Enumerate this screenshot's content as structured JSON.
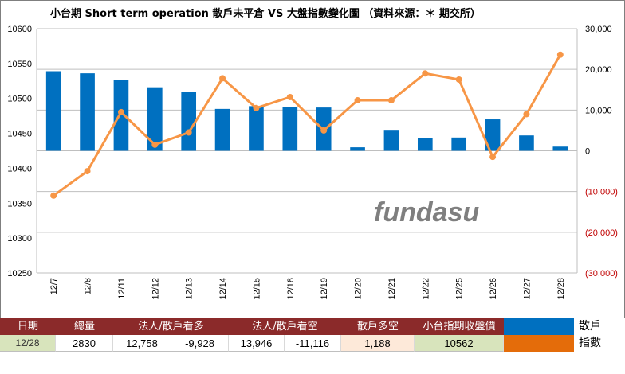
{
  "chart_data": {
    "type": "bar+line",
    "title": "小台期 Short term operation  散戶未平倉 VS 大盤指數變化圖  （資料來源：＊ 期交所）",
    "watermark": "fundasu",
    "categories": [
      "12/7",
      "12/8",
      "12/11",
      "12/12",
      "12/13",
      "12/14",
      "12/15",
      "12/18",
      "12/19",
      "12/20",
      "12/21",
      "12/22",
      "12/25",
      "12/26",
      "12/27",
      "12/28"
    ],
    "left_axis": {
      "ylim": [
        10250,
        10600
      ],
      "ticks": [
        "10600",
        "10550",
        "10500",
        "10450",
        "10400",
        "10350",
        "10300",
        "10250"
      ],
      "tick_values": [
        10600,
        10550,
        10500,
        10450,
        10400,
        10350,
        10300,
        10250
      ]
    },
    "right_axis": {
      "ylim": [
        -30000,
        30000
      ],
      "ticks": [
        "30,000",
        "20,000",
        "10,000",
        "0",
        "(10,000)",
        "(20,000)",
        "(30,000)"
      ],
      "tick_values": [
        30000,
        20000,
        10000,
        0,
        -10000,
        -20000,
        -30000
      ]
    },
    "series": [
      {
        "kind": "bar",
        "axis": "left",
        "color": "#0070c0",
        "values": [
          10539,
          10536,
          10527,
          10516,
          10509,
          10485,
          10489,
          10488,
          10487,
          10430,
          10455,
          10443,
          10444,
          10470,
          10447,
          10431
        ]
      },
      {
        "kind": "line",
        "axis": "right",
        "color": "#f79646",
        "values": [
          -11000,
          -5000,
          9500,
          1500,
          4500,
          17800,
          10500,
          13200,
          5000,
          12400,
          12400,
          19000,
          17500,
          -1500,
          9000,
          23600
        ]
      }
    ],
    "grid": "horizontal"
  },
  "table": {
    "headers": {
      "date": "日期",
      "volume": "總量",
      "inst_long": "法人/散戶看多",
      "inst_short": "法人/散戶看空",
      "retail": "散戶多空",
      "close": "小台指期收盤價"
    },
    "values": {
      "date": "12/28",
      "volume": "2830",
      "inst_long_1": "12,758",
      "inst_long_2": "-9,928",
      "inst_short_1": "13,946",
      "inst_short_2": "-11,116",
      "retail": "1,188",
      "close": "10562"
    },
    "legend": [
      {
        "label": "散戶",
        "color": "#0070c0"
      },
      {
        "label": "指數",
        "color": "#e46c0a"
      }
    ]
  }
}
